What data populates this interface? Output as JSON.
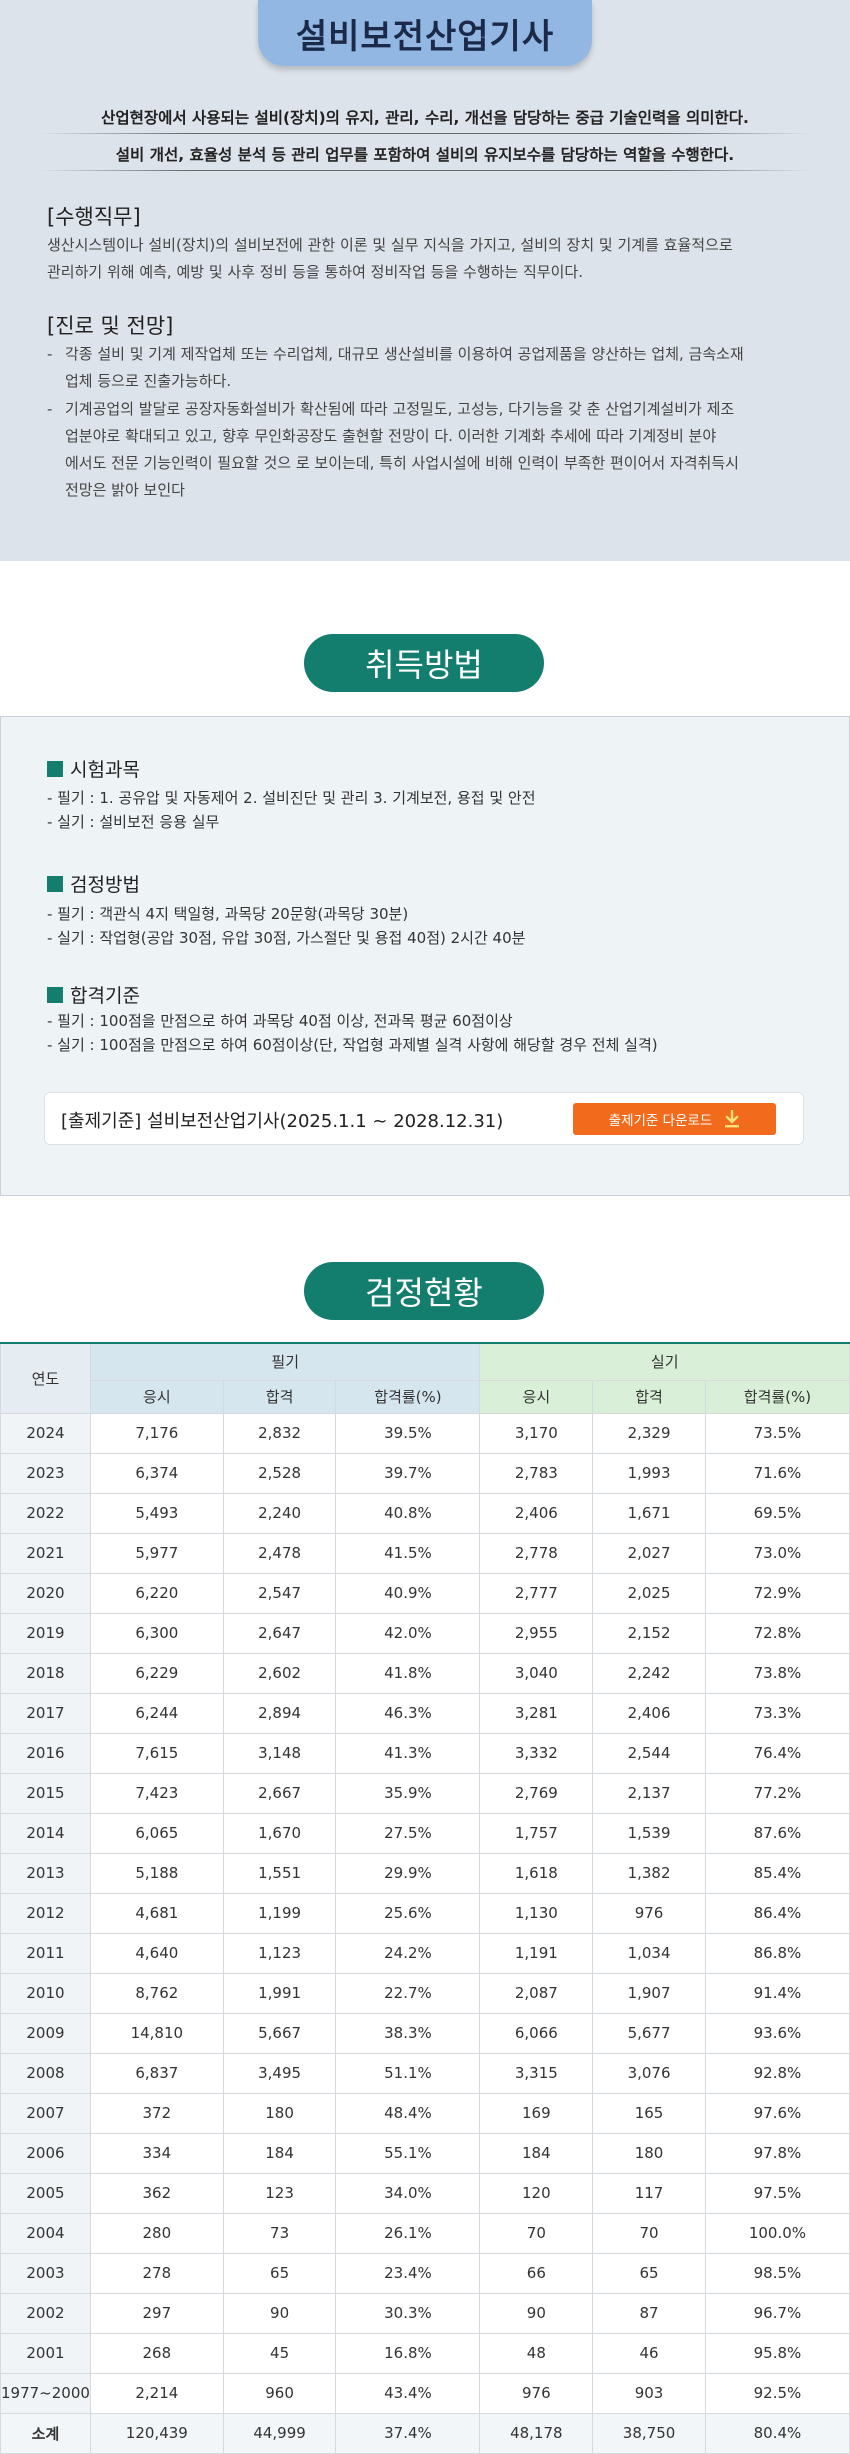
{
  "header": {
    "title": "설비보전산업기사",
    "lead_lines": [
      "산업현장에서 사용되는 설비(장치)의 유지, 관리, 수리, 개선을 담당하는 중급 기술인력을 의미한다.",
      "설비 개선, 효율성 분석 등 관리 업무를 포함하여 설비의 유지보수를 담당하는 역할을 수행한다."
    ]
  },
  "duties": {
    "heading": "[수행직무]",
    "text_lines": [
      "생산시스템이나 설비(장치)의 설비보전에 관한 이론 및 실무 지식을 가지고, 설비의 장치 및 기계를 효율적으로",
      "관리하기 위해 예측, 예방 및 사후 정비 등을 통하여 정비작업 등을 수행하는 직무이다."
    ]
  },
  "outlook": {
    "heading": "[진로 및 전망]",
    "bullets": [
      {
        "dash": "-",
        "lines": [
          "각종 설비 및 기계 제작업체 또는 수리업체, 대규모 생산설비를 이용하여 공업제품을 양산하는 업체, 금속소재",
          "업체 등으로 진출가능하다."
        ]
      },
      {
        "dash": "-",
        "lines": [
          "기계공업의 발달로 공장자동화설비가 확산됨에 따라 고정밀도, 고성능, 다기능을 갖 춘 산업기계설비가 제조",
          "업분야로 확대되고 있고, 향후 무인화공장도 출현할 전망이 다. 이러한 기계화 추세에 따라 기계정비 분야",
          "에서도 전문 기능인력이 필요할 것으 로 보이는데, 특히 사업시설에 비해 인력이 부족한 편이어서 자격취득시",
          "전망은 밝아 보인다"
        ]
      }
    ]
  },
  "acquisition": {
    "title": "취득방법",
    "subjects": {
      "heading": "시험과목",
      "written": "- 필기 :   1. 공유압 및 자동제어     2. 설비진단 및 관리     3. 기계보전, 용접 및 안전",
      "practical": "- 실기 :   설비보전 응용 실무"
    },
    "method": {
      "heading": "검정방법",
      "written": "- 필기 :  객관식 4지 택일형, 과목당 20문항(과목당 30분)",
      "practical": "- 실기 :  작업형(공압 30점, 유압 30점, 가스절단 및 용접 40점) 2시간 40분"
    },
    "criteria": {
      "heading": "합격기준",
      "written": "- 필기 :   100점을 만점으로 하여 과목당 40점 이상, 전과목 평균 60점이상",
      "practical": "- 실기 :   100점을 만점으로 하여 60점이상(단, 작업형 과제별 실격 사항에 해당할 경우 전체 실격)"
    },
    "standard": {
      "text": "[출제기준] 설비보전산업기사(2025.1.1 ~ 2028.12.31)",
      "download_label": "출제기준 다운로드",
      "download_icon": "download-icon",
      "button_color": "#f26b1d"
    }
  },
  "stats": {
    "title": "검정현황",
    "headers": {
      "year": "연도",
      "written": "필기",
      "practical": "실기",
      "applicants": "응시",
      "passed": "합격",
      "rate": "합격률(%)"
    },
    "rows": [
      [
        "2024",
        "7,176",
        "2,832",
        "39.5%",
        "3,170",
        "2,329",
        "73.5%"
      ],
      [
        "2023",
        "6,374",
        "2,528",
        "39.7%",
        "2,783",
        "1,993",
        "71.6%"
      ],
      [
        "2022",
        "5,493",
        "2,240",
        "40.8%",
        "2,406",
        "1,671",
        "69.5%"
      ],
      [
        "2021",
        "5,977",
        "2,478",
        "41.5%",
        "2,778",
        "2,027",
        "73.0%"
      ],
      [
        "2020",
        "6,220",
        "2,547",
        "40.9%",
        "2,777",
        "2,025",
        "72.9%"
      ],
      [
        "2019",
        "6,300",
        "2,647",
        "42.0%",
        "2,955",
        "2,152",
        "72.8%"
      ],
      [
        "2018",
        "6,229",
        "2,602",
        "41.8%",
        "3,040",
        "2,242",
        "73.8%"
      ],
      [
        "2017",
        "6,244",
        "2,894",
        "46.3%",
        "3,281",
        "2,406",
        "73.3%"
      ],
      [
        "2016",
        "7,615",
        "3,148",
        "41.3%",
        "3,332",
        "2,544",
        "76.4%"
      ],
      [
        "2015",
        "7,423",
        "2,667",
        "35.9%",
        "2,769",
        "2,137",
        "77.2%"
      ],
      [
        "2014",
        "6,065",
        "1,670",
        "27.5%",
        "1,757",
        "1,539",
        "87.6%"
      ],
      [
        "2013",
        "5,188",
        "1,551",
        "29.9%",
        "1,618",
        "1,382",
        "85.4%"
      ],
      [
        "2012",
        "4,681",
        "1,199",
        "25.6%",
        "1,130",
        "976",
        "86.4%"
      ],
      [
        "2011",
        "4,640",
        "1,123",
        "24.2%",
        "1,191",
        "1,034",
        "86.8%"
      ],
      [
        "2010",
        "8,762",
        "1,991",
        "22.7%",
        "2,087",
        "1,907",
        "91.4%"
      ],
      [
        "2009",
        "14,810",
        "5,667",
        "38.3%",
        "6,066",
        "5,677",
        "93.6%"
      ],
      [
        "2008",
        "6,837",
        "3,495",
        "51.1%",
        "3,315",
        "3,076",
        "92.8%"
      ],
      [
        "2007",
        "372",
        "180",
        "48.4%",
        "169",
        "165",
        "97.6%"
      ],
      [
        "2006",
        "334",
        "184",
        "55.1%",
        "184",
        "180",
        "97.8%"
      ],
      [
        "2005",
        "362",
        "123",
        "34.0%",
        "120",
        "117",
        "97.5%"
      ],
      [
        "2004",
        "280",
        "73",
        "26.1%",
        "70",
        "70",
        "100.0%"
      ],
      [
        "2003",
        "278",
        "65",
        "23.4%",
        "66",
        "65",
        "98.5%"
      ],
      [
        "2002",
        "297",
        "90",
        "30.3%",
        "90",
        "87",
        "96.7%"
      ],
      [
        "2001",
        "268",
        "45",
        "16.8%",
        "48",
        "46",
        "95.8%"
      ],
      [
        "1977~2000",
        "2,214",
        "960",
        "43.4%",
        "976",
        "903",
        "92.5%"
      ]
    ],
    "total": [
      "소계",
      "120,439",
      "44,999",
      "37.4%",
      "48,178",
      "38,750",
      "80.4%"
    ]
  }
}
